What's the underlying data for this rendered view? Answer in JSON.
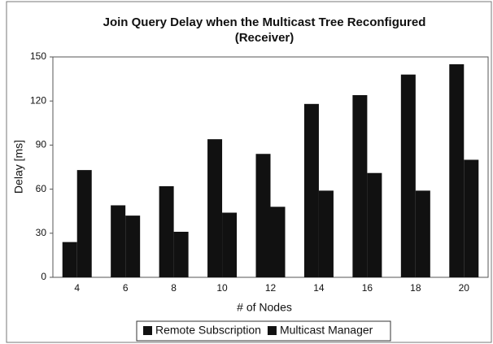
{
  "chart_data": {
    "type": "bar",
    "title": "Join Query Delay when the Multicast Tree Reconfigured",
    "subtitle": "(Receiver)",
    "x_label": "# of Nodes",
    "y_label": "Delay [ms]",
    "categories": [
      "4",
      "6",
      "8",
      "10",
      "12",
      "14",
      "16",
      "18",
      "20"
    ],
    "series": [
      {
        "name": "Remote Subscription",
        "color": "#111111",
        "values": [
          24,
          49,
          62,
          94,
          84,
          118,
          124,
          138,
          145
        ]
      },
      {
        "name": "Multicast Manager",
        "color": "#111111",
        "values": [
          73,
          42,
          31,
          44,
          48,
          59,
          71,
          59,
          80
        ]
      }
    ],
    "ylim": [
      0,
      150
    ],
    "yticks": [
      0,
      30,
      60,
      90,
      120,
      150
    ],
    "legend": "bottom"
  }
}
